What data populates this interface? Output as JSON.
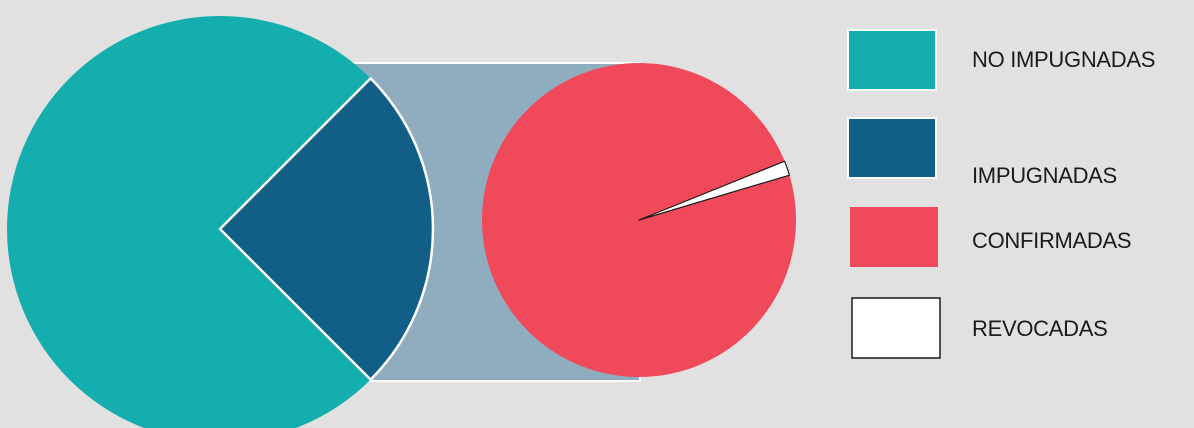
{
  "chart_data": [
    {
      "type": "pie",
      "categories": [
        "NO IMPUGNADAS",
        "IMPUGNADAS"
      ],
      "values": [
        75,
        25
      ],
      "colors": [
        "#14aeae",
        "#115e87"
      ],
      "exploded": "IMPUGNADAS"
    },
    {
      "type": "pie",
      "categories": [
        "CONFIRMADAS",
        "REVOCADAS"
      ],
      "values": [
        98.5,
        1.5
      ],
      "colors": [
        "#f04a5a",
        "#ffffff"
      ]
    }
  ],
  "connector_color": "#8fadbf",
  "legend": [
    {
      "label": "NO IMPUGNADAS",
      "color": "#14aeae"
    },
    {
      "label": "IMPUGNADAS",
      "color": "#115e87"
    },
    {
      "label": "CONFIRMADAS",
      "color": "#f04a5a"
    },
    {
      "label": "REVOCADAS",
      "color": "#ffffff"
    }
  ]
}
